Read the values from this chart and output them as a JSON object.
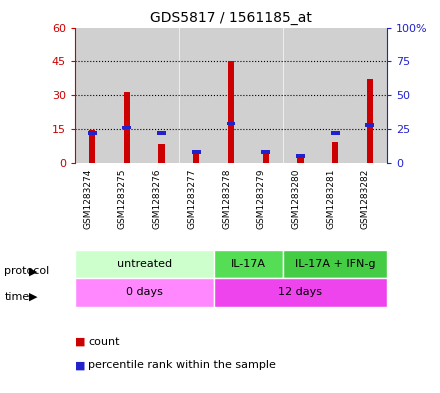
{
  "title": "GDS5817 / 1561185_at",
  "samples": [
    "GSM1283274",
    "GSM1283275",
    "GSM1283276",
    "GSM1283277",
    "GSM1283278",
    "GSM1283279",
    "GSM1283280",
    "GSM1283281",
    "GSM1283282"
  ],
  "count_values": [
    14.5,
    31.5,
    8.5,
    4.5,
    45.0,
    5.5,
    2.5,
    9.0,
    37.0
  ],
  "percentile_values": [
    22,
    26,
    22,
    8,
    29,
    8,
    5,
    22,
    28
  ],
  "ylim_left": [
    0,
    60
  ],
  "ylim_right": [
    0,
    100
  ],
  "yticks_left": [
    0,
    15,
    30,
    45,
    60
  ],
  "yticks_right": [
    0,
    25,
    50,
    75,
    100
  ],
  "ytick_labels_right": [
    "0",
    "25",
    "50",
    "75",
    "100%"
  ],
  "protocol_groups": [
    {
      "label": "untreated",
      "start": 0,
      "end": 4,
      "color": "#ccffcc"
    },
    {
      "label": "IL-17A",
      "start": 4,
      "end": 6,
      "color": "#55dd55"
    },
    {
      "label": "IL-17A + IFN-g",
      "start": 6,
      "end": 9,
      "color": "#44cc44"
    }
  ],
  "time_groups": [
    {
      "label": "0 days",
      "start": 0,
      "end": 4,
      "color": "#ff88ff"
    },
    {
      "label": "12 days",
      "start": 4,
      "end": 9,
      "color": "#ee44ee"
    }
  ],
  "bar_color_red": "#cc0000",
  "bar_color_blue": "#2222cc",
  "narrow_bar_width": 0.18,
  "grid_color": "black",
  "grid_style": "dotted",
  "col_bg_color": "#d0d0d0",
  "col_bg_sep": "#ffffff",
  "plot_bg": "#ffffff",
  "left_axis_color": "#cc0000",
  "right_axis_color": "#2222cc",
  "legend_count_label": "count",
  "legend_pct_label": "percentile rank within the sample",
  "protocol_label": "protocol",
  "time_label": "time",
  "figsize": [
    4.4,
    3.93
  ],
  "dpi": 100
}
